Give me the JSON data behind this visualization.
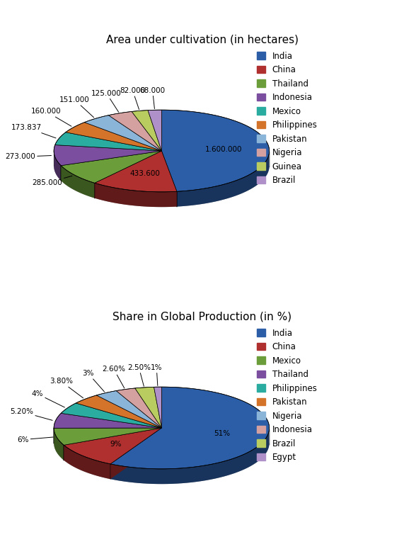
{
  "chart1": {
    "title": "Area under cultivation (in hectares)",
    "labels": [
      "India",
      "China",
      "Thailand",
      "Indonesia",
      "Mexico",
      "Philippines",
      "Pakistan",
      "Nigeria",
      "Guinea",
      "Brazil"
    ],
    "values": [
      1600000,
      433600,
      285000,
      273000,
      173837,
      160000,
      151000,
      125000,
      82000,
      68000
    ],
    "display_labels": [
      "1.600.000",
      "433.600",
      "285.000",
      "273.000",
      "173.837",
      "160.000",
      "151.000",
      "125.000",
      "82.000",
      "68.000"
    ],
    "colors": [
      "#2B5EA7",
      "#B03030",
      "#6B9E3A",
      "#7B4EA0",
      "#2AACA0",
      "#D4732A",
      "#8AB4D8",
      "#D4A0A0",
      "#B8CC60",
      "#B090C8"
    ],
    "large_threshold": 0.1
  },
  "chart2": {
    "title": "Share in Global Production (in %)",
    "labels": [
      "India",
      "China",
      "Mexico",
      "Thailand",
      "Philippines",
      "Pakistan",
      "Nigeria",
      "Indonesia",
      "Brazil",
      "Egypt"
    ],
    "values": [
      51,
      9,
      6,
      5.2,
      4,
      3.8,
      3,
      2.6,
      2.5,
      1
    ],
    "display_labels": [
      "51%",
      "9%",
      "6%",
      "5.20%",
      "4%",
      "3.80%",
      "3%",
      "2.60%",
      "2.50%",
      "1%"
    ],
    "colors": [
      "#2B5EA7",
      "#B03030",
      "#6B9E3A",
      "#7B4EA0",
      "#2AACA0",
      "#D4732A",
      "#8AB4D8",
      "#D4A0A0",
      "#B8CC60",
      "#B090C8"
    ],
    "large_threshold": 0.1
  },
  "background_color": "#ffffff",
  "title_fontsize": 11,
  "label_fontsize": 7.5,
  "legend_fontsize": 8.5
}
